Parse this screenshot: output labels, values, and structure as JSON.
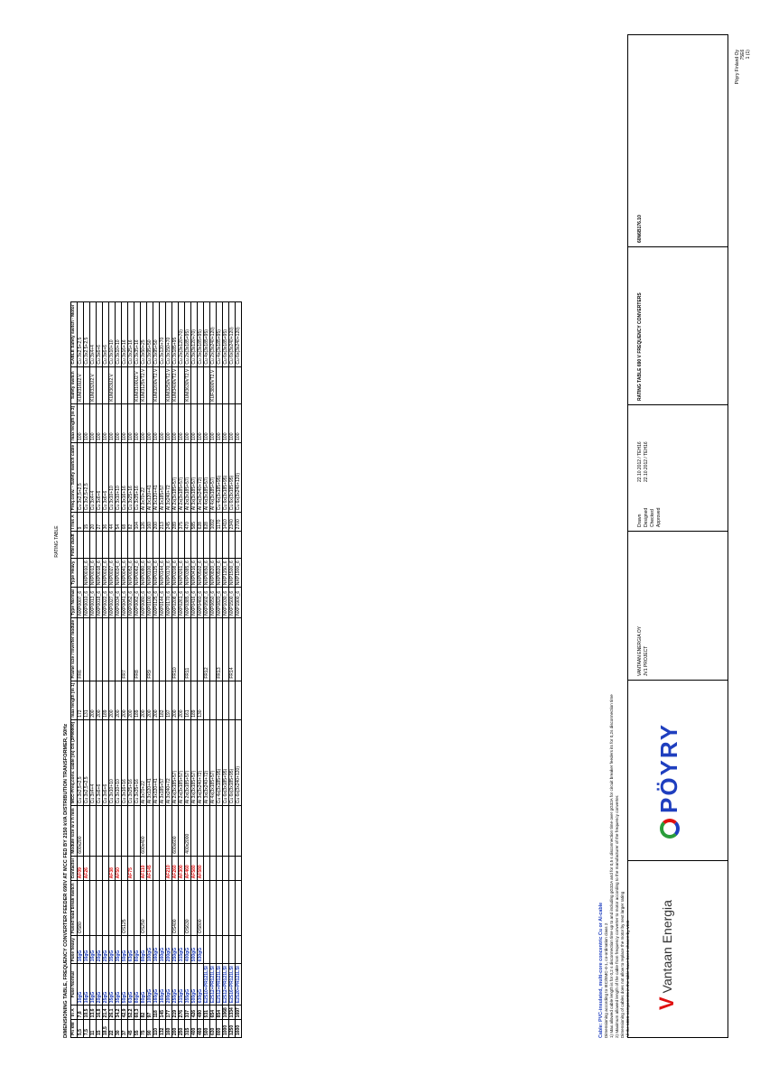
{
  "header": {
    "company": "Pöyry Finland Oy",
    "doc_no": "75E6",
    "page": "1 (1)"
  },
  "sheet": {
    "caption": "RATING TABLE",
    "title": "DIMENSIONING TABLE, FREQUENCY CONVERTER FEEDER 690V AT MCC FED BY 2150 kVA DISTRIBUTION TRANSFORMER, 50Hz"
  },
  "columns": [
    "Pn kW",
    "In A",
    "Fuse Normal",
    "Fuse heavy",
    "Fused load break switch",
    "Contactor",
    "Module size w x h mm",
    "MCC-Freq.conv. cable (m) ÖS (2F90000)",
    "max length (m 1)",
    "Frame size / Inverter module",
    "Type Normal",
    "Type Heavy",
    "Filter du/dt",
    "I rms A",
    "Freq.conv. - Safety switch cable",
    "max length (m 2)",
    "Safety switch",
    "CABLE Safety switch - Motor"
  ],
  "rows": [
    [
      "5,5",
      "7,8",
      "10gG",
      "16gG",
      "OS80",
      "AF09",
      "600x200",
      "Cu 3x2,5+2,5",
      "172",
      "FR6",
      "NXP0007_6",
      "",
      "",
      "9",
      "Cu 3x2,5+2,5",
      "100",
      "KUM316U2.V",
      "Cu 3x2,5+2,5"
    ],
    [
      "7,5",
      "10,5",
      "16gG",
      "16gG",
      "",
      "AF26",
      "",
      "Cu 3x2,5+2,5",
      "131",
      "",
      "NXP0010_6",
      "NXP0010_6",
      "",
      "15",
      "Cu 3x2,5+2,5",
      "100",
      "",
      "Cu 3x2,5+2,5"
    ],
    [
      "11",
      "13,6",
      "16gG",
      "16gG",
      "",
      "",
      "",
      "Cu 3x4+4",
      "200",
      "",
      "NXP0013_6",
      "NXP0013_6",
      "",
      "20",
      "Cu 3x4+4",
      "100",
      "KUM332U2.V",
      "Cu 3x4+4"
    ],
    [
      "15",
      "16,8",
      "20gG",
      "20gG",
      "",
      "",
      "",
      "Cu 3x6+6",
      "200",
      "",
      "NXP0018_6",
      "NXP0018_6",
      "",
      "27",
      "Cu 3x6+6",
      "100",
      "",
      "Cu 3x6+6"
    ],
    [
      "18,5",
      "21,4",
      "25gG",
      "25gG",
      "",
      "",
      "",
      "Cu 3x6+6",
      "189",
      "",
      "NXP0022_6",
      "NXP0022_6",
      "",
      "36",
      "Cu 3x6+6",
      "100",
      "",
      "Cu 3x6+6"
    ],
    [
      "22",
      "26,1",
      "35gG",
      "35gG",
      "",
      "AF38",
      "",
      "Cu 3x10+10",
      "200",
      "",
      "NXP0027_6",
      "NXP0027_6",
      "",
      "44",
      "Cu 3x10+10",
      "100",
      "KUM363U2.V",
      "Cu 3x10+10"
    ],
    [
      "30",
      "34,2",
      "35gG",
      "35gG",
      "",
      "AF50",
      "",
      "Cu 3x10+10",
      "200",
      "",
      "NXP0034_6",
      "NXP0034_6",
      "",
      "54",
      "Cu 3x10+10",
      "100",
      "",
      "Cu 3x10+10"
    ],
    [
      "37",
      "42,9",
      "50gG",
      "50gG",
      "OS125",
      "",
      "",
      "Cu 3x16+16",
      "200",
      "FR7",
      "NXP0041_6",
      "NXP0041_6",
      "",
      "68",
      "Cu 3x16+16",
      "100",
      "",
      "Cu 3x16+16"
    ],
    [
      "45",
      "52,2",
      "63gG",
      "63gG",
      "",
      "AF75",
      "",
      "Cu 3x25+16",
      "200",
      "",
      "NXP0052_6",
      "NXP0052_6",
      "",
      "82",
      "Cu 3x25+16",
      "100",
      "",
      "Cu 3x25+16"
    ],
    [
      "55",
      "60,3",
      "80gG",
      "80gG",
      "",
      "",
      "",
      "Cu 3x35+16",
      "189",
      "FR8",
      "NXP0062_6",
      "NXP0062_6",
      "",
      "104",
      "Cu 3x35+16",
      "100",
      "KUM3100U2.V",
      "Cu 3x35+16"
    ],
    [
      "75",
      "82",
      "80gG",
      "80gG",
      "OS250",
      "AF110",
      "600x400",
      "Al 3x70+22",
      "200",
      "",
      "NXP0080_6",
      "NXP0080_6",
      "",
      "126",
      "Al 3x70+22",
      "100",
      "KUM3125VT2.V",
      "Cu 3x50+25"
    ],
    [
      "90",
      "97",
      "100gG",
      "100gG",
      "",
      "AF145",
      "",
      "Al 3x120+41",
      "200",
      "FR9",
      "NXP0100_6",
      "NXP0100_6",
      "",
      "160",
      "Al 3x120+41",
      "100",
      "",
      "Cu 3x95+50"
    ],
    [
      "110",
      "118",
      "160gG",
      "160gG",
      "",
      "",
      "",
      "Al 3x120+41",
      "200",
      "",
      "NXP0125_6",
      "NXP0125_6",
      "",
      "200",
      "Al 3x120+41",
      "100",
      "KUM3200VT2.V",
      "Cu 3x95+50"
    ],
    [
      "132",
      "145",
      "160gG",
      "160gG",
      "",
      "",
      "",
      "Al 3x185+57",
      "182",
      "",
      "NXP0144_6",
      "NXP0144_6",
      "",
      "213",
      "Al 3x185+57",
      "100",
      "",
      "Cu 3x120+70"
    ],
    [
      "160",
      "177",
      "200gG",
      "200gG",
      "",
      "AF210",
      "",
      "Al 3x240+72",
      "197",
      "",
      "NXP0170_6",
      "NXP0170_6",
      "",
      "245",
      "Al 3x240+72",
      "100",
      "KUM3250VT2.V",
      "Cu 3x150+70"
    ],
    [
      "200",
      "219",
      "250gG",
      "250gG",
      "OS400",
      "AF260",
      "600x600",
      "Al 2x(3x185+57)",
      "200",
      "FR10",
      "NXP0208_6",
      "NXP0208_6",
      "",
      "289",
      "Al 2x(3x185+57)",
      "100",
      "KUM3400VT2.V",
      "Cu 3x185+95"
    ],
    [
      "250",
      "276",
      "315gG",
      "315gG",
      "",
      "AF300",
      "",
      "Al 2x(3x185+57)",
      "200",
      "",
      "NXP0261_6",
      "NXP0261_6",
      "",
      "375",
      "Al 2x(3x185+57)",
      "100",
      "",
      "Cu 2x(3x120+70)"
    ],
    [
      "315",
      "337",
      "355gG",
      "400gG",
      "OS630",
      "AF460",
      "400x2000",
      "Al 2x(3x185+57)",
      "161",
      "FR11",
      "NXP0385_6",
      "NXP0385_6",
      "",
      "470",
      "Al 2x(3x185+57)",
      "100",
      "KUM3630VT2.V",
      "Cu 2x(3x185+95)"
    ],
    [
      "400",
      "426",
      "500gG",
      "500gG",
      "",
      "AF580",
      "",
      "Al 3x(3x185+57)",
      "189",
      "",
      "NXP0416_6",
      "NXP0416_6",
      "",
      "585",
      "Al 3x(3x185+57)",
      "100",
      "",
      "Cu 3x(3x120+70)"
    ],
    [
      "460",
      "480",
      "630gG",
      "630gG",
      "OS800",
      "AF580",
      "",
      "Al 3x(3x240+72)",
      "130",
      "",
      "NXP0460_6",
      "NXP0502_6",
      "",
      "628",
      "Al 3x(3x240+72)",
      "100",
      "",
      "Cu 3x(3x185+95)"
    ],
    [
      "500",
      "531",
      "E2S10+PR121LSI",
      "",
      "",
      "",
      "",
      "Al 3x(3x240+72)",
      "",
      "FR12",
      "NXP0502_6",
      "NXP0650_6",
      "",
      "828",
      "Al 4x(3x185+57)",
      "100",
      "",
      "Cu 4x(3x185+95)"
    ],
    [
      "630",
      "654",
      "E2S12+PR121LSI",
      "",
      "",
      "",
      "",
      "Al 4x(3x185+57)",
      "",
      "",
      "NXP0650_6",
      "NXP0820_6",
      "",
      "1092",
      "Al 4x(3x185+57)",
      "100",
      "KUF3800VT2.V",
      "Cu 2x(3x240+120)"
    ],
    [
      "800",
      "854",
      "E2S12+PR121LSI",
      "",
      "",
      "",
      "",
      "Cu 4x(3x185+95)",
      "",
      "FR13",
      "NXP0820_6",
      "NXP0920_6",
      "",
      "1170",
      "Cu 4x(3x185+95)",
      "100",
      "",
      "Cu 4x(3x185+95)"
    ],
    [
      "1000",
      "1068",
      "E2S12+PR121LSI",
      "",
      "",
      "",
      "",
      "Cu 6x(3x185+95)",
      "",
      "",
      "NXP1030_6",
      "NXP1150_6",
      "",
      "1410",
      "Cu 6x(3x185+95)",
      "100",
      "",
      "Cu 6x(3x185+95)"
    ],
    [
      "1250",
      "1334",
      "E2S16+PR121LSI",
      "",
      "",
      "",
      "",
      "Cu 6x(3x185+95)",
      "",
      "FR14",
      "NXP1500_6",
      "NXP1500_6",
      "",
      "2340",
      "Cu 6x(3x185+95)",
      "100",
      "",
      "Cu 6x(3x240+120)"
    ],
    [
      "1600",
      "1697",
      "E2S20+PR121LSI",
      "",
      "",
      "",
      "",
      "Cu 6x(3x240+120)",
      "",
      "",
      "NXP1900_6",
      "NXP1900_6",
      "",
      "2700",
      "Cu 6x(3x240+120)",
      "100",
      "",
      "Cu 6x(3x240+120)"
    ]
  ],
  "notes": [
    "Cable: PVC-insulated, multi-core concentric Cu or Al-cable",
    "Dimensioning according to IEC/EMC-4-1, co-ordination class 2",
    "1) Max allowed cable length is for 0,2 s disconnection time up to and including gG32A and for 0,5 s disconnection time over gG32A for circuit breaker feeders its for 0,2s disconnection time",
    "2) Maximum allowed length of the cable from frequency converter to motor according to the manufacturer of the frequency converter.",
    "Dimensioning of cables does not allow to replace the motor by next larger rating",
    "All the MCC components in the table have been chosen by VEO"
  ],
  "footer": {
    "client_logo": "Vantaan Energia",
    "consultant_logo": "PÖYRY",
    "company": "VANTAAN ENERGIA OY",
    "project": "JV1 PROJECT",
    "roles": [
      "Drawn",
      "Designed",
      "Checked",
      "Approved"
    ],
    "dates": [
      "22.10.2012 / TEH16",
      "22.10.2012 / TEH16",
      "",
      ""
    ],
    "doc_title": "RATING TABLE 690 V FREQUENCY CONVERTERS",
    "doc_number": "60N6B176.10"
  },
  "colors": {
    "blue": "#1f3fbf",
    "red": "#e01010",
    "green": "#2a9d3a"
  }
}
